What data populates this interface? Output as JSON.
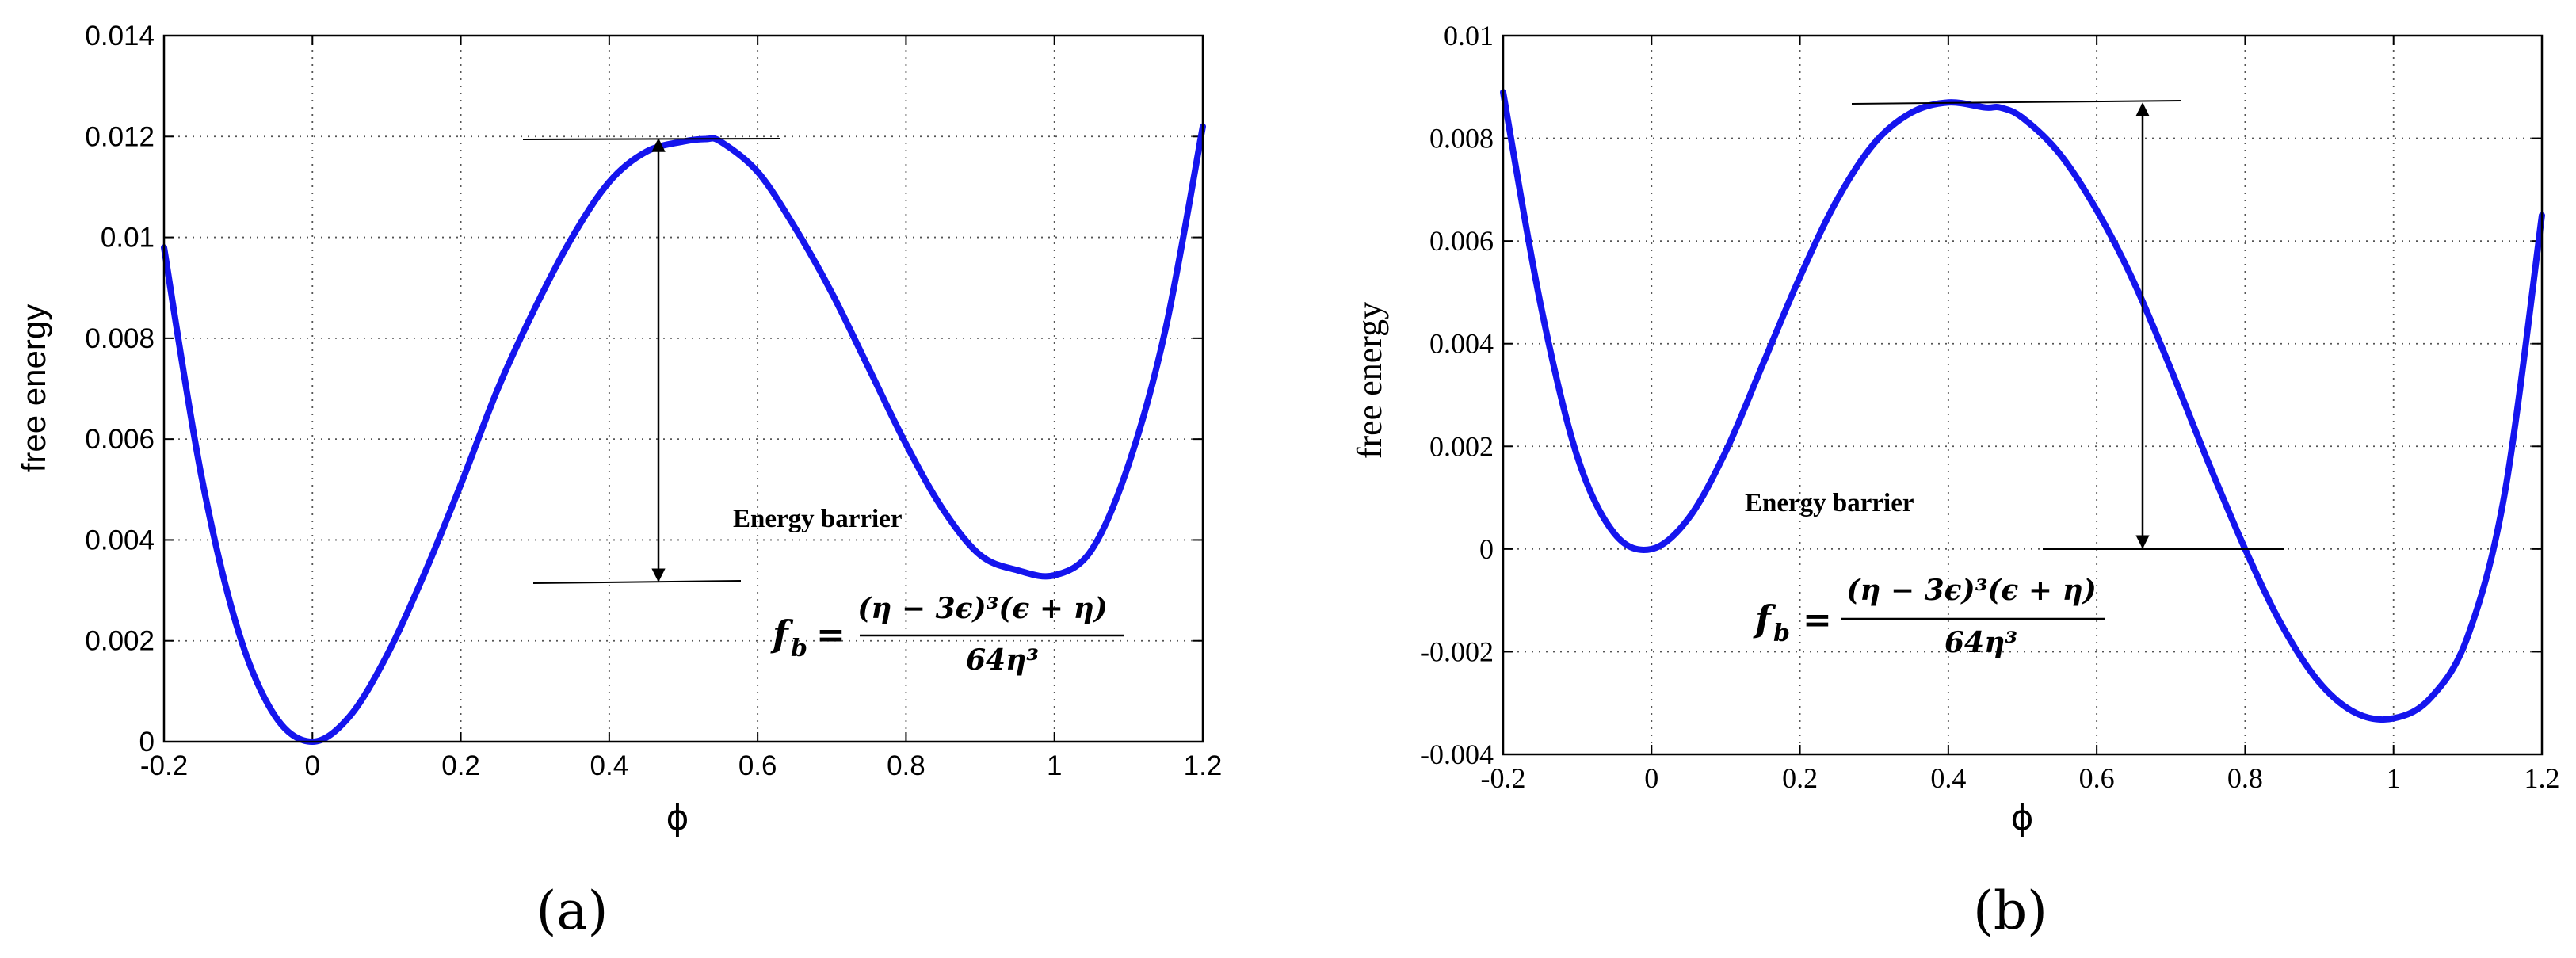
{
  "chart_data": [
    {
      "type": "line",
      "panel_label": "(a)",
      "xlabel": "ϕ",
      "ylabel": "free energy",
      "xlim": [
        -0.2,
        1.2
      ],
      "ylim": [
        0,
        0.014
      ],
      "xticks": [
        -0.2,
        0,
        0.2,
        0.4,
        0.6,
        0.8,
        1,
        1.2
      ],
      "xtick_labels": [
        "-0.2",
        "0",
        "0.2",
        "0.4",
        "0.6",
        "0.8",
        "1",
        "1.2"
      ],
      "yticks": [
        0,
        0.002,
        0.004,
        0.006,
        0.008,
        0.01,
        0.012,
        0.014
      ],
      "ytick_labels": [
        "0",
        "0.002",
        "0.004",
        "0.006",
        "0.008",
        "0.01",
        "0.012",
        "0.014"
      ],
      "grid": true,
      "color": "#1515ee",
      "x": [
        -0.2,
        -0.15,
        -0.1,
        -0.05,
        0,
        0.05,
        0.1,
        0.15,
        0.2,
        0.25,
        0.3,
        0.35,
        0.4,
        0.45,
        0.5,
        0.53,
        0.55,
        0.6,
        0.65,
        0.7,
        0.75,
        0.8,
        0.85,
        0.9,
        0.95,
        1,
        1.05,
        1.1,
        1.15,
        1.2
      ],
      "y": [
        0.0098,
        0.0053,
        0.0022,
        0.0005,
        0.0,
        0.0005,
        0.0017,
        0.0033,
        0.0051,
        0.007,
        0.0086,
        0.01,
        0.0111,
        0.0117,
        0.0119,
        0.01195,
        0.0119,
        0.0113,
        0.0102,
        0.0089,
        0.0074,
        0.0059,
        0.0046,
        0.0037,
        0.0034,
        0.0033,
        0.0038,
        0.0055,
        0.0082,
        0.0122
      ],
      "annotation": "Energy barrier",
      "formula": {
        "lhs": "f",
        "lhs_sub": "b",
        "eq": "=",
        "num": "(η − 3ϵ)³(ϵ + η)",
        "den": "64η³"
      }
    },
    {
      "type": "line",
      "panel_label": "(b)",
      "xlabel": "ϕ",
      "ylabel": "free energy",
      "xlim": [
        -0.2,
        1.2
      ],
      "ylim": [
        -0.004,
        0.01
      ],
      "xticks": [
        -0.2,
        0,
        0.2,
        0.4,
        0.6,
        0.8,
        1,
        1.2
      ],
      "xtick_labels": [
        "-0.2",
        "0",
        "0.2",
        "0.4",
        "0.6",
        "0.8",
        "1",
        "1.2"
      ],
      "yticks": [
        -0.004,
        -0.002,
        0,
        0.002,
        0.004,
        0.006,
        0.008,
        0.01
      ],
      "ytick_labels": [
        "-0.004",
        "-0.002",
        "0",
        "0.002",
        "0.004",
        "0.006",
        "0.008",
        "0.01"
      ],
      "grid": true,
      "color": "#1515ee",
      "x": [
        -0.2,
        -0.15,
        -0.1,
        -0.05,
        0,
        0.05,
        0.1,
        0.15,
        0.2,
        0.25,
        0.3,
        0.35,
        0.4,
        0.45,
        0.47,
        0.5,
        0.55,
        0.6,
        0.65,
        0.7,
        0.75,
        0.8,
        0.85,
        0.9,
        0.95,
        1,
        1.05,
        1.1,
        1.15,
        1.2
      ],
      "y": [
        0.0089,
        0.0048,
        0.0018,
        0.0003,
        0.0,
        0.0006,
        0.0019,
        0.0036,
        0.0053,
        0.0068,
        0.0079,
        0.0085,
        0.0087,
        0.0086,
        0.0086,
        0.0084,
        0.0077,
        0.0066,
        0.0052,
        0.0035,
        0.0017,
        0.0,
        -0.0015,
        -0.0026,
        -0.0032,
        -0.0033,
        -0.0029,
        -0.0017,
        0.0011,
        0.0065
      ],
      "annotation": "Energy barrier",
      "formula": {
        "lhs": "f",
        "lhs_sub": "b",
        "eq": "=",
        "num": "(η − 3ϵ)³(ϵ + η)",
        "den": "64η³"
      }
    }
  ]
}
